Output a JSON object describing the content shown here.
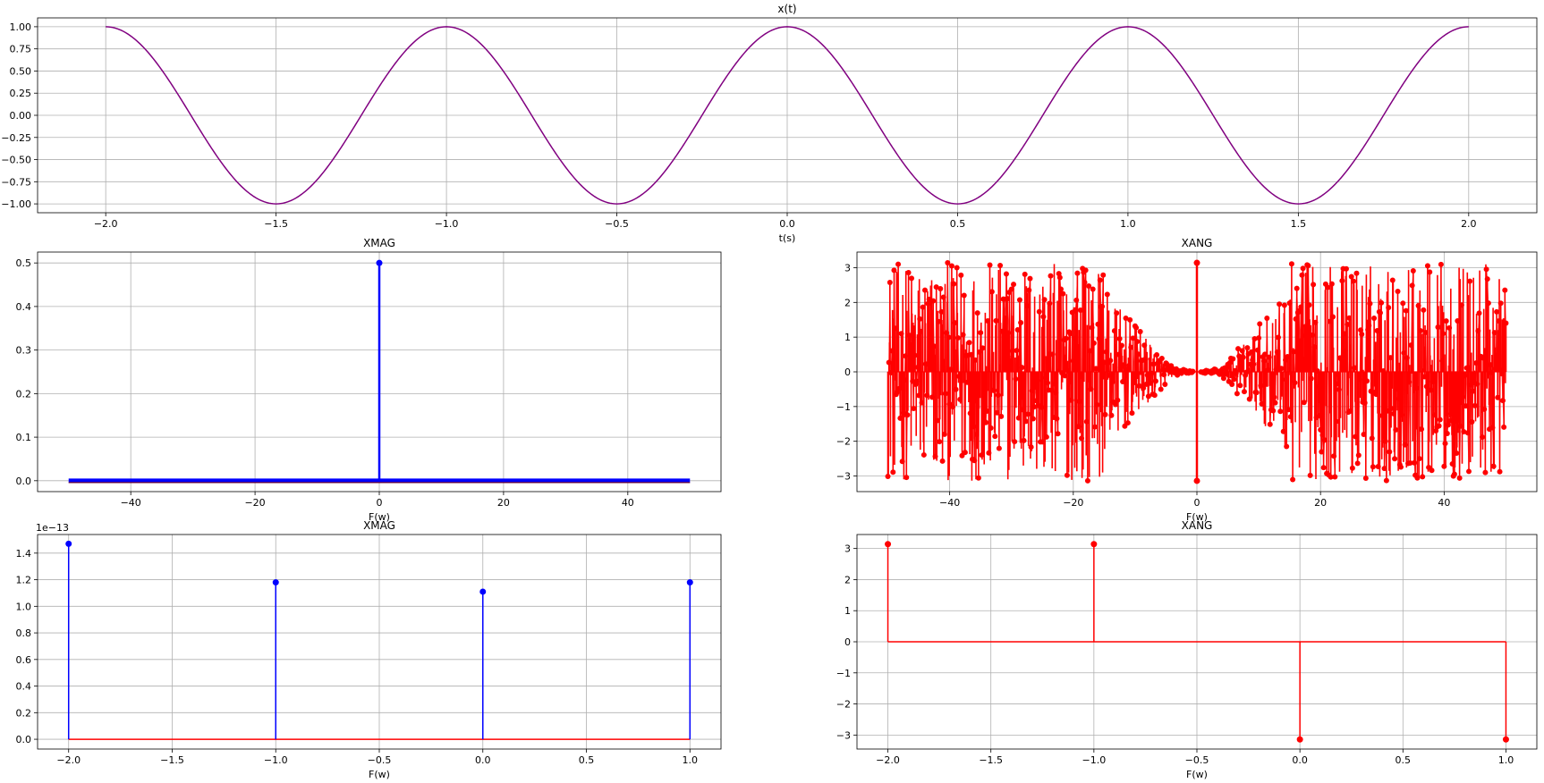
{
  "chart_data": [
    {
      "id": "xt",
      "type": "line",
      "title": "x(t)",
      "xlabel": "t(s)",
      "ylabel": "",
      "xlim": [
        -2.2,
        2.2
      ],
      "ylim": [
        -1.1,
        1.1
      ],
      "xticks": [
        -2.0,
        -1.5,
        -1.0,
        -0.5,
        0.0,
        0.5,
        1.0,
        1.5,
        2.0
      ],
      "xtick_labels": [
        "−2.0",
        "−1.5",
        "−1.0",
        "−0.5",
        "0.0",
        "0.5",
        "1.0",
        "1.5",
        "2.0"
      ],
      "yticks": [
        1.0,
        0.75,
        0.5,
        0.25,
        0.0,
        -0.25,
        -0.5,
        -0.75,
        -1.0
      ],
      "ytick_labels": [
        "1.00",
        "0.75",
        "0.50",
        "0.25",
        "0.00",
        "−0.25",
        "−0.50",
        "−0.75",
        "−1.00"
      ],
      "grid": true,
      "series": [
        {
          "function": "cos(2*pi*t)",
          "x_range": [
            -2.0,
            2.0
          ],
          "color": "#800080"
        }
      ]
    },
    {
      "id": "xmag1",
      "type": "stem",
      "title": "XMAG",
      "xlabel": "F(w)",
      "ylabel": "",
      "xlim": [
        -55,
        55
      ],
      "ylim": [
        -0.025,
        0.525
      ],
      "xticks": [
        -40,
        -20,
        0,
        20,
        40
      ],
      "xtick_labels": [
        "−40",
        "−20",
        "0",
        "20",
        "40"
      ],
      "yticks": [
        0.0,
        0.1,
        0.2,
        0.3,
        0.4,
        0.5
      ],
      "ytick_labels": [
        "0.0",
        "0.1",
        "0.2",
        "0.3",
        "0.4",
        "0.5"
      ],
      "grid": true,
      "color": "#0000ff",
      "baseline_x": [
        -50,
        50
      ],
      "points": [
        {
          "x": 0,
          "y": 0.5
        }
      ],
      "note_dense": "all other samples from -50 to 50 are approximately 0"
    },
    {
      "id": "xang1",
      "type": "stem",
      "title": "XANG",
      "xlabel": "F(w)",
      "ylabel": "",
      "xlim": [
        -55,
        55
      ],
      "ylim": [
        -3.45,
        3.45
      ],
      "xticks": [
        -40,
        -20,
        0,
        20,
        40
      ],
      "xtick_labels": [
        "−40",
        "−20",
        "0",
        "20",
        "40"
      ],
      "yticks": [
        3,
        2,
        1,
        0,
        -1,
        -2,
        -3
      ],
      "ytick_labels": [
        "3",
        "2",
        "1",
        "0",
        "−1",
        "−2",
        "−3"
      ],
      "grid": true,
      "color": "#ff0000",
      "x_range": [
        -50,
        50
      ],
      "spikes": [
        {
          "x": 0,
          "y": 3.14
        },
        {
          "x": 0,
          "y": -3.14
        }
      ],
      "description": "noisy phase values spanning -pi to pi, narrowing toward 0 near F=0"
    },
    {
      "id": "xmag2",
      "type": "stem",
      "title": "XMAG",
      "xlabel": "F(w)",
      "ylabel": "",
      "offset_text": "1e−13",
      "xlim": [
        -2.15,
        1.15
      ],
      "ylim": [
        -0.0735,
        1.54
      ],
      "xticks": [
        -2.0,
        -1.5,
        -1.0,
        -0.5,
        0.0,
        0.5,
        1.0
      ],
      "xtick_labels": [
        "−2.0",
        "−1.5",
        "−1.0",
        "−0.5",
        "0.0",
        "0.5",
        "1.0"
      ],
      "yticks": [
        0.0,
        0.2,
        0.4,
        0.6,
        0.8,
        1.0,
        1.2,
        1.4
      ],
      "ytick_labels": [
        "0.0",
        "0.2",
        "0.4",
        "0.6",
        "0.8",
        "1.0",
        "1.2",
        "1.4"
      ],
      "grid": true,
      "color": "#0000ff",
      "baseline_color": "#ff0000",
      "x": [
        -2.0,
        -1.0,
        0.0,
        1.0
      ],
      "values": [
        1.47,
        1.18,
        1.11,
        1.18
      ]
    },
    {
      "id": "xang2",
      "type": "stem",
      "title": "XANG",
      "xlabel": "F(w)",
      "ylabel": "",
      "xlim": [
        -2.15,
        1.15
      ],
      "ylim": [
        -3.45,
        3.45
      ],
      "xticks": [
        -2.0,
        -1.5,
        -1.0,
        -0.5,
        0.0,
        0.5,
        1.0
      ],
      "xtick_labels": [
        "−2.0",
        "−1.5",
        "−1.0",
        "−0.5",
        "0.0",
        "0.5",
        "1.0"
      ],
      "yticks": [
        3,
        2,
        1,
        0,
        -1,
        -2,
        -3
      ],
      "ytick_labels": [
        "3",
        "2",
        "1",
        "0",
        "−1",
        "−2",
        "−3"
      ],
      "grid": true,
      "color": "#ff0000",
      "x": [
        -2.0,
        -1.0,
        0.0,
        1.0
      ],
      "values": [
        3.14,
        3.14,
        -3.14,
        -3.14
      ]
    }
  ]
}
